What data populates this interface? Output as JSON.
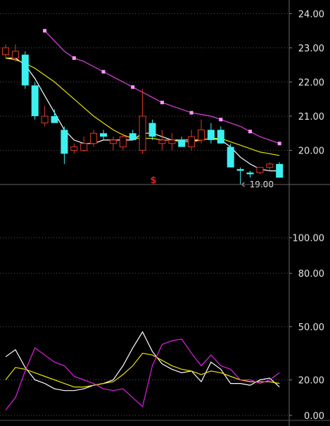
{
  "chart_data": [
    {
      "type": "candlestick",
      "ylim": [
        19.0,
        24.4
      ],
      "yticks": [
        20.0,
        21.0,
        22.0,
        23.0,
        24.0
      ],
      "ytick_labels": [
        "20.00",
        "21.00",
        "22.00",
        "23.00",
        "24.00"
      ],
      "grid": true,
      "colors": {
        "up": "#e03a2a",
        "down": "#3df0f0",
        "grid": "#555555",
        "bg": "#000000"
      },
      "candles": [
        {
          "o": 22.8,
          "h": 23.1,
          "l": 22.7,
          "c": 23.0
        },
        {
          "o": 22.7,
          "h": 23.1,
          "l": 22.6,
          "c": 22.9
        },
        {
          "o": 22.8,
          "h": 22.9,
          "l": 21.8,
          "c": 21.9
        },
        {
          "o": 21.9,
          "h": 22.0,
          "l": 20.9,
          "c": 21.0
        },
        {
          "o": 20.8,
          "h": 21.3,
          "l": 20.7,
          "c": 21.0
        },
        {
          "o": 21.0,
          "h": 21.2,
          "l": 20.8,
          "c": 20.8
        },
        {
          "o": 20.6,
          "h": 20.7,
          "l": 19.6,
          "c": 19.9
        },
        {
          "o": 20.0,
          "h": 20.2,
          "l": 19.9,
          "c": 20.1
        },
        {
          "o": 20.0,
          "h": 20.4,
          "l": 19.95,
          "c": 20.2
        },
        {
          "o": 20.2,
          "h": 20.6,
          "l": 20.1,
          "c": 20.5
        },
        {
          "o": 20.5,
          "h": 20.6,
          "l": 20.3,
          "c": 20.4
        },
        {
          "o": 20.2,
          "h": 20.4,
          "l": 20.0,
          "c": 20.3
        },
        {
          "o": 20.1,
          "h": 20.5,
          "l": 20.0,
          "c": 20.4
        },
        {
          "o": 20.5,
          "h": 20.6,
          "l": 20.3,
          "c": 20.3
        },
        {
          "o": 20.0,
          "h": 21.8,
          "l": 19.9,
          "c": 21.0
        },
        {
          "o": 20.8,
          "h": 20.9,
          "l": 20.3,
          "c": 20.4
        },
        {
          "o": 20.2,
          "h": 20.6,
          "l": 20.0,
          "c": 20.3
        },
        {
          "o": 20.2,
          "h": 20.5,
          "l": 20.0,
          "c": 20.3
        },
        {
          "o": 20.3,
          "h": 20.4,
          "l": 20.1,
          "c": 20.1
        },
        {
          "o": 20.1,
          "h": 20.6,
          "l": 20.0,
          "c": 20.4
        },
        {
          "o": 20.3,
          "h": 20.9,
          "l": 20.2,
          "c": 20.6
        },
        {
          "o": 20.6,
          "h": 20.8,
          "l": 20.2,
          "c": 20.3
        },
        {
          "o": 20.6,
          "h": 20.7,
          "l": 20.2,
          "c": 20.2
        },
        {
          "o": 20.1,
          "h": 20.2,
          "l": 19.5,
          "c": 19.5
        },
        {
          "o": 19.45,
          "h": 19.5,
          "l": 19.0,
          "c": 19.4
        },
        {
          "o": 19.35,
          "h": 19.4,
          "l": 19.2,
          "c": 19.3
        },
        {
          "o": 19.35,
          "h": 19.5,
          "l": 19.3,
          "c": 19.5
        },
        {
          "o": 19.5,
          "h": 19.65,
          "l": 19.4,
          "c": 19.6
        },
        {
          "o": 19.6,
          "h": 19.65,
          "l": 19.2,
          "c": 19.2
        }
      ],
      "series": [
        {
          "color": "#ffffff",
          "values": [
            22.7,
            22.7,
            22.5,
            22.1,
            21.6,
            21.1,
            20.6,
            20.3,
            20.2,
            20.2,
            20.3,
            20.3,
            20.3,
            20.3,
            20.5,
            20.5,
            20.4,
            20.3,
            20.3,
            20.3,
            20.3,
            20.35,
            20.3,
            20.1,
            19.8,
            19.6,
            19.45,
            19.4,
            19.4
          ]
        },
        {
          "color": "#e8e000",
          "values": [
            22.7,
            22.65,
            22.55,
            22.4,
            22.2,
            22.0,
            21.75,
            21.5,
            21.25,
            21.0,
            20.8,
            20.6,
            20.45,
            20.35,
            20.35,
            20.35,
            20.3,
            20.3,
            20.25,
            20.25,
            20.3,
            20.35,
            20.35,
            20.25,
            20.15,
            20.05,
            19.95,
            19.9,
            19.85
          ]
        },
        {
          "color": "#e040e0",
          "start": 4,
          "marker_color": "#ff99ff",
          "marker_every": 3,
          "values": [
            23.5,
            23.2,
            22.9,
            22.7,
            22.6,
            22.45,
            22.3,
            22.15,
            22.0,
            21.85,
            21.7,
            21.55,
            21.4,
            21.3,
            21.2,
            21.1,
            21.05,
            21.0,
            20.9,
            20.8,
            20.7,
            20.55,
            20.4,
            20.3,
            20.2
          ]
        }
      ],
      "annotations": [
        {
          "text": "19.00",
          "candle": 24,
          "value": 19.0
        }
      ],
      "marker_text": "$"
    },
    {
      "type": "line",
      "ylim": [
        0,
        130
      ],
      "yticks": [
        0,
        20,
        50,
        80,
        100
      ],
      "ytick_labels": [
        "0.00",
        "20.00",
        "50.00",
        "80.00",
        "100.00"
      ],
      "grid": true,
      "series": [
        {
          "color": "#ffffff",
          "values": [
            33,
            37,
            27,
            20,
            18,
            15,
            14,
            14,
            15,
            17,
            18,
            20,
            28,
            38,
            47,
            36,
            29,
            26,
            24,
            25,
            19,
            30,
            26,
            18,
            18,
            17,
            20,
            21,
            16
          ]
        },
        {
          "color": "#e8e000",
          "values": [
            20,
            27,
            26,
            24,
            22,
            20,
            18,
            16,
            16,
            17,
            18,
            19,
            23,
            28,
            35,
            34,
            31,
            28,
            26,
            25,
            23,
            25,
            24,
            22,
            20,
            19,
            19,
            19,
            18
          ]
        },
        {
          "color": "#e020e0",
          "values": [
            3,
            10,
            25,
            38,
            34,
            30,
            28,
            22,
            20,
            18,
            15,
            14,
            15,
            10,
            5,
            28,
            40,
            42,
            43,
            35,
            28,
            34,
            28,
            26,
            20,
            20,
            18,
            20,
            24
          ]
        }
      ]
    }
  ]
}
